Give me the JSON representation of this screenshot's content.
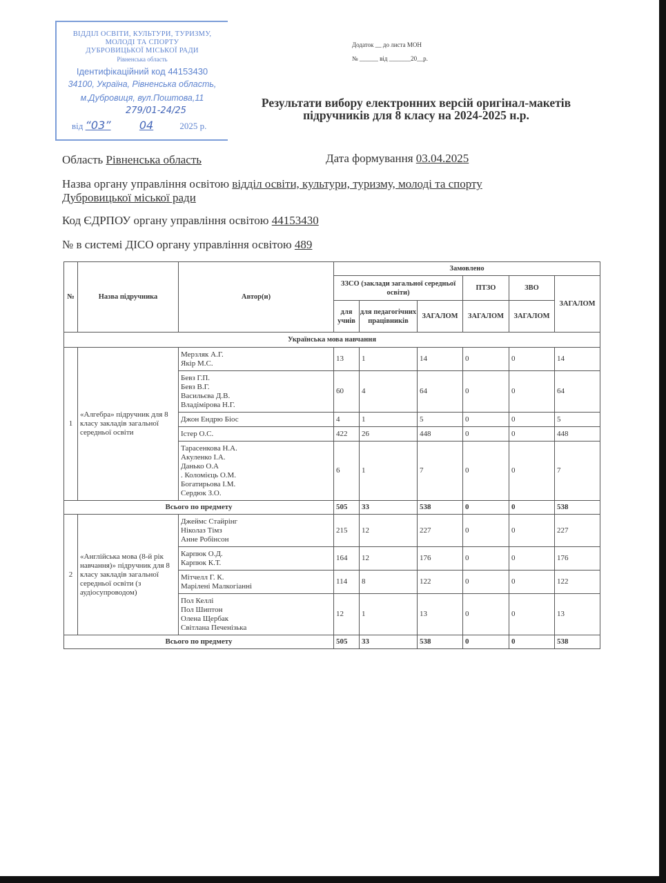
{
  "stamp": {
    "org_lines": [
      "ВІДДІЛ ОСВІТИ, КУЛЬТУРИ, ТУРИЗМУ,",
      "МОЛОДІ ТА СПОРТУ",
      "ДУБРОВИЦЬКОЇ МІСЬКОЇ РАДИ"
    ],
    "region": "Рівненська область",
    "id_code": "Ідентифікаційний код 44153430",
    "address_1": "34100, Україна, Рівненська область,",
    "address_2": "м.Дубровиця, вул.Поштова,11",
    "reg_number": "279/01-24/25",
    "date_prefix": "від",
    "day": "“03”",
    "month": "04",
    "year": "2025 р.",
    "color": "#5d83cf"
  },
  "annex": {
    "line1": "Додаток __ до листа МОН",
    "line2": "№ ______ від _______20__р."
  },
  "title": "Результати вибору електронних версій оригінал-макетів підручників для 8 класу на 2024-2025 н.р.",
  "fields": {
    "region_label": "Область",
    "region_value": "Рівненська область",
    "date_label": "Дата формування",
    "date_value": "03.04.2025",
    "authority_label": "Назва органу управління освітою",
    "authority_value_1": "відділ освіти, культури, туризму, молоді та спорту",
    "authority_value_2": "Дубровицької міської ради",
    "edrpou_label": "Код ЄДРПОУ органу управління освітою",
    "edrpou_value": "44153430",
    "diso_label": "№ в системі ДІСО органу управління освітою",
    "diso_value": "489"
  },
  "table": {
    "headers": {
      "no": "№",
      "name": "Назва підручника",
      "authors": "Автор(и)",
      "ordered": "Замовлено",
      "zzso": "ЗЗСО (заклади загальної середньої освіти)",
      "ptzo": "ПТЗО",
      "zvo": "ЗВО",
      "total": "ЗАГАЛОМ",
      "students": "для учнів",
      "teachers": "для педагогічних працівників",
      "zzso_total": "ЗАГАЛОМ",
      "ptzo_total": "ЗАГАЛОМ",
      "zvo_total": "ЗАГАЛОМ"
    },
    "section": "Українська мова навчання",
    "subjects": [
      {
        "no": "1",
        "name": "«Алгебра» підручник для 8 класу закладів загальної середньої освіти",
        "rows": [
          {
            "authors": [
              "Мерзляк А.Г.",
              "Якір М.С."
            ],
            "values": [
              "13",
              "1",
              "14",
              "0",
              "0",
              "14"
            ]
          },
          {
            "authors": [
              "Бевз Г.П.",
              "Бевз В.Г.",
              "Васильєва Д.В.",
              "Владімірова Н.Г."
            ],
            "values": [
              "60",
              "4",
              "64",
              "0",
              "0",
              "64"
            ]
          },
          {
            "authors": [
              "Джон Ендрю Біос"
            ],
            "values": [
              "4",
              "1",
              "5",
              "0",
              "0",
              "5"
            ]
          },
          {
            "authors": [
              "Істер О.С."
            ],
            "values": [
              "422",
              "26",
              "448",
              "0",
              "0",
              "448"
            ]
          },
          {
            "authors": [
              "Тарасенкова Н.А.",
              "Акуленко І.А.",
              "Данько О.А",
              ". Коломієць О.М.",
              "Богатирьова І.М.",
              "Сердюк З.О."
            ],
            "values": [
              "6",
              "1",
              "7",
              "0",
              "0",
              "7"
            ]
          }
        ],
        "total_label": "Всього по предмету",
        "totals": [
          "505",
          "33",
          "538",
          "0",
          "0",
          "538"
        ]
      },
      {
        "no": "2",
        "name": "«Англійська мова (8-й рік навчання)» підручник для 8 класу закладів загальної середньої освіти (з аудіосупроводом)",
        "rows": [
          {
            "authors": [
              "Джеймс Стайрінг",
              "Ніколаз Тімз",
              "Анне Робінсон"
            ],
            "values": [
              "215",
              "12",
              "227",
              "0",
              "0",
              "227"
            ]
          },
          {
            "authors": [
              "Карпюк О.Д.",
              "Карпюк К.Т."
            ],
            "values": [
              "164",
              "12",
              "176",
              "0",
              "0",
              "176"
            ]
          },
          {
            "authors": [
              "Мітчелл Г. К.",
              "Марілені Малкогіанні"
            ],
            "values": [
              "114",
              "8",
              "122",
              "0",
              "0",
              "122"
            ]
          },
          {
            "authors": [
              "Пол Келлі",
              "Пол Шиптон",
              "Олена Щербак",
              "Світлана Печенізька"
            ],
            "values": [
              "12",
              "1",
              "13",
              "0",
              "0",
              "13"
            ]
          }
        ],
        "total_label": "Всього по предмету",
        "totals": [
          "505",
          "33",
          "538",
          "0",
          "0",
          "538"
        ]
      }
    ]
  }
}
